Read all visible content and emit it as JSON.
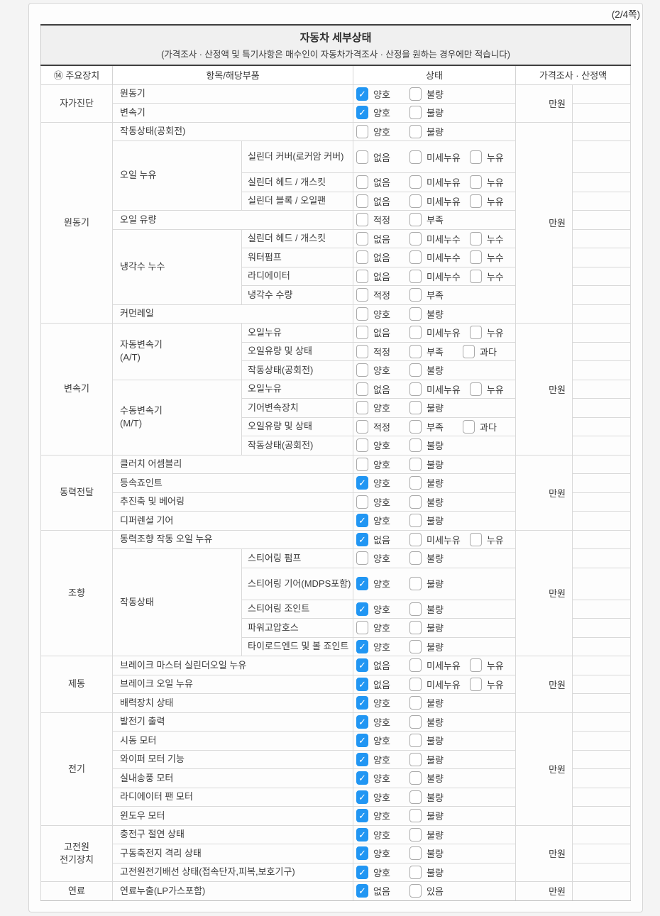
{
  "page_indicator": "(2/4쪽)",
  "accent_color": "#2196f3",
  "table": {
    "title": "자동차 세부상태",
    "subtitle": "(가격조사 · 산정액 및 특기사항은 매수인이 자동차가격조사 · 산정을 원하는 경우에만 적습니다)",
    "columns": {
      "device": "⑭ 주요장치",
      "item": "항목/해당부품",
      "status": "상태",
      "price": "가격조사 · 산정액"
    },
    "price_unit": "만원",
    "sections": [
      {
        "name": "자가진단",
        "rows": [
          {
            "item": "원동기",
            "wide": true,
            "options": [
              {
                "label": "양호",
                "checked": true
              },
              {
                "label": "불량",
                "checked": false
              }
            ]
          },
          {
            "item": "변속기",
            "wide": true,
            "options": [
              {
                "label": "양호",
                "checked": true
              },
              {
                "label": "불량",
                "checked": false
              }
            ]
          }
        ]
      },
      {
        "name": "원동기",
        "rows": [
          {
            "item": "작동상태(공회전)",
            "wide": true,
            "options": [
              {
                "label": "양호",
                "checked": false
              },
              {
                "label": "불량",
                "checked": false
              }
            ]
          },
          {
            "group": "오일 누유",
            "group_span": 3,
            "item": "실린더 커버(로커암 커버)",
            "tall": true,
            "options": [
              {
                "label": "없음",
                "checked": false
              },
              {
                "label": "미세누유",
                "checked": false
              },
              {
                "label": "누유",
                "checked": false
              }
            ]
          },
          {
            "item": "실린더 헤드 / 개스킷",
            "options": [
              {
                "label": "없음",
                "checked": false
              },
              {
                "label": "미세누유",
                "checked": false
              },
              {
                "label": "누유",
                "checked": false
              }
            ]
          },
          {
            "item": "실린더 블록 / 오일팬",
            "options": [
              {
                "label": "없음",
                "checked": false
              },
              {
                "label": "미세누유",
                "checked": false
              },
              {
                "label": "누유",
                "checked": false
              }
            ]
          },
          {
            "item": "오일 유량",
            "wide": true,
            "options": [
              {
                "label": "적정",
                "checked": false
              },
              {
                "label": "부족",
                "checked": false
              }
            ]
          },
          {
            "group": "냉각수 누수",
            "group_span": 4,
            "item": "실린더 헤드 / 개스킷",
            "options": [
              {
                "label": "없음",
                "checked": false
              },
              {
                "label": "미세누수",
                "checked": false
              },
              {
                "label": "누수",
                "checked": false
              }
            ]
          },
          {
            "item": "워터펌프",
            "options": [
              {
                "label": "없음",
                "checked": false
              },
              {
                "label": "미세누수",
                "checked": false
              },
              {
                "label": "누수",
                "checked": false
              }
            ]
          },
          {
            "item": "라디에이터",
            "options": [
              {
                "label": "없음",
                "checked": false
              },
              {
                "label": "미세누수",
                "checked": false
              },
              {
                "label": "누수",
                "checked": false
              }
            ]
          },
          {
            "item": "냉각수 수량",
            "options": [
              {
                "label": "적정",
                "checked": false
              },
              {
                "label": "부족",
                "checked": false
              }
            ]
          },
          {
            "item": "커먼레일",
            "wide": true,
            "options": [
              {
                "label": "양호",
                "checked": false
              },
              {
                "label": "불량",
                "checked": false
              }
            ]
          }
        ]
      },
      {
        "name": "변속기",
        "rows": [
          {
            "group": "자동변속기\n(A/T)",
            "group_span": 3,
            "item": "오일누유",
            "options": [
              {
                "label": "없음",
                "checked": false
              },
              {
                "label": "미세누유",
                "checked": false
              },
              {
                "label": "누유",
                "checked": false
              }
            ]
          },
          {
            "item": "오일유량 및 상태",
            "options": [
              {
                "label": "적정",
                "checked": false
              },
              {
                "label": "부족",
                "checked": false
              },
              {
                "label": "과다",
                "checked": false
              }
            ]
          },
          {
            "item": "작동상태(공회전)",
            "options": [
              {
                "label": "양호",
                "checked": false
              },
              {
                "label": "불량",
                "checked": false
              }
            ]
          },
          {
            "group": "수동변속기\n(M/T)",
            "group_span": 4,
            "item": "오일누유",
            "options": [
              {
                "label": "없음",
                "checked": false
              },
              {
                "label": "미세누유",
                "checked": false
              },
              {
                "label": "누유",
                "checked": false
              }
            ]
          },
          {
            "item": "기어변속장치",
            "options": [
              {
                "label": "양호",
                "checked": false
              },
              {
                "label": "불량",
                "checked": false
              }
            ]
          },
          {
            "item": "오일유량 및 상태",
            "options": [
              {
                "label": "적정",
                "checked": false
              },
              {
                "label": "부족",
                "checked": false
              },
              {
                "label": "과다",
                "checked": false
              }
            ]
          },
          {
            "item": "작동상태(공회전)",
            "options": [
              {
                "label": "양호",
                "checked": false
              },
              {
                "label": "불량",
                "checked": false
              }
            ]
          }
        ]
      },
      {
        "name": "동력전달",
        "rows": [
          {
            "item": "클러치 어셈블리",
            "wide": true,
            "options": [
              {
                "label": "양호",
                "checked": false
              },
              {
                "label": "불량",
                "checked": false
              }
            ]
          },
          {
            "item": "등속죠인트",
            "wide": true,
            "options": [
              {
                "label": "양호",
                "checked": true
              },
              {
                "label": "불량",
                "checked": false
              }
            ]
          },
          {
            "item": "추진축 및 베어링",
            "wide": true,
            "options": [
              {
                "label": "양호",
                "checked": false
              },
              {
                "label": "불량",
                "checked": false
              }
            ]
          },
          {
            "item": "디퍼렌셜 기어",
            "wide": true,
            "options": [
              {
                "label": "양호",
                "checked": true
              },
              {
                "label": "불량",
                "checked": false
              }
            ]
          }
        ]
      },
      {
        "name": "조향",
        "rows": [
          {
            "item": "동력조향 작동 오일 누유",
            "wide": true,
            "options": [
              {
                "label": "없음",
                "checked": true
              },
              {
                "label": "미세누유",
                "checked": false
              },
              {
                "label": "누유",
                "checked": false
              }
            ]
          },
          {
            "group": "작동상태",
            "group_span": 5,
            "item": "스티어링 펌프",
            "options": [
              {
                "label": "양호",
                "checked": false
              },
              {
                "label": "불량",
                "checked": false
              }
            ]
          },
          {
            "item": "스티어링 기어(MDPS포함)",
            "tall": true,
            "options": [
              {
                "label": "양호",
                "checked": true
              },
              {
                "label": "불량",
                "checked": false
              }
            ]
          },
          {
            "item": "스티어링 조인트",
            "options": [
              {
                "label": "양호",
                "checked": true
              },
              {
                "label": "불량",
                "checked": false
              }
            ]
          },
          {
            "item": "파워고압호스",
            "options": [
              {
                "label": "양호",
                "checked": false
              },
              {
                "label": "불량",
                "checked": false
              }
            ]
          },
          {
            "item": "타이로드엔드 및 볼 죠인트",
            "options": [
              {
                "label": "양호",
                "checked": true
              },
              {
                "label": "불량",
                "checked": false
              }
            ]
          }
        ]
      },
      {
        "name": "제동",
        "rows": [
          {
            "item": "브레이크 마스터 실린더오일 누유",
            "wide": true,
            "options": [
              {
                "label": "없음",
                "checked": true
              },
              {
                "label": "미세누유",
                "checked": false
              },
              {
                "label": "누유",
                "checked": false
              }
            ]
          },
          {
            "item": "브레이크 오일 누유",
            "wide": true,
            "options": [
              {
                "label": "없음",
                "checked": true
              },
              {
                "label": "미세누유",
                "checked": false
              },
              {
                "label": "누유",
                "checked": false
              }
            ]
          },
          {
            "item": "배력장치 상태",
            "wide": true,
            "options": [
              {
                "label": "양호",
                "checked": true
              },
              {
                "label": "불량",
                "checked": false
              }
            ]
          }
        ]
      },
      {
        "name": "전기",
        "rows": [
          {
            "item": "발전기 출력",
            "wide": true,
            "options": [
              {
                "label": "양호",
                "checked": true
              },
              {
                "label": "불량",
                "checked": false
              }
            ]
          },
          {
            "item": "시동 모터",
            "wide": true,
            "options": [
              {
                "label": "양호",
                "checked": true
              },
              {
                "label": "불량",
                "checked": false
              }
            ]
          },
          {
            "item": "와이퍼 모터 기능",
            "wide": true,
            "options": [
              {
                "label": "양호",
                "checked": true
              },
              {
                "label": "불량",
                "checked": false
              }
            ]
          },
          {
            "item": "실내송풍 모터",
            "wide": true,
            "options": [
              {
                "label": "양호",
                "checked": true
              },
              {
                "label": "불량",
                "checked": false
              }
            ]
          },
          {
            "item": "라디에이터 팬 모터",
            "wide": true,
            "options": [
              {
                "label": "양호",
                "checked": true
              },
              {
                "label": "불량",
                "checked": false
              }
            ]
          },
          {
            "item": "윈도우 모터",
            "wide": true,
            "options": [
              {
                "label": "양호",
                "checked": true
              },
              {
                "label": "불량",
                "checked": false
              }
            ]
          }
        ]
      },
      {
        "name": "고전원\n전기장치",
        "rows": [
          {
            "item": "충전구 절연 상태",
            "wide": true,
            "options": [
              {
                "label": "양호",
                "checked": true
              },
              {
                "label": "불량",
                "checked": false
              }
            ]
          },
          {
            "item": "구동축전지 격리 상태",
            "wide": true,
            "options": [
              {
                "label": "양호",
                "checked": true
              },
              {
                "label": "불량",
                "checked": false
              }
            ]
          },
          {
            "item": "고전원전기배선 상태(접속단자,피복,보호기구)",
            "wide": true,
            "options": [
              {
                "label": "양호",
                "checked": true
              },
              {
                "label": "불량",
                "checked": false
              }
            ]
          }
        ]
      },
      {
        "name": "연료",
        "rows": [
          {
            "item": "연료누출(LP가스포함)",
            "wide": true,
            "options": [
              {
                "label": "없음",
                "checked": true
              },
              {
                "label": "있음",
                "checked": false
              }
            ]
          }
        ]
      }
    ]
  }
}
